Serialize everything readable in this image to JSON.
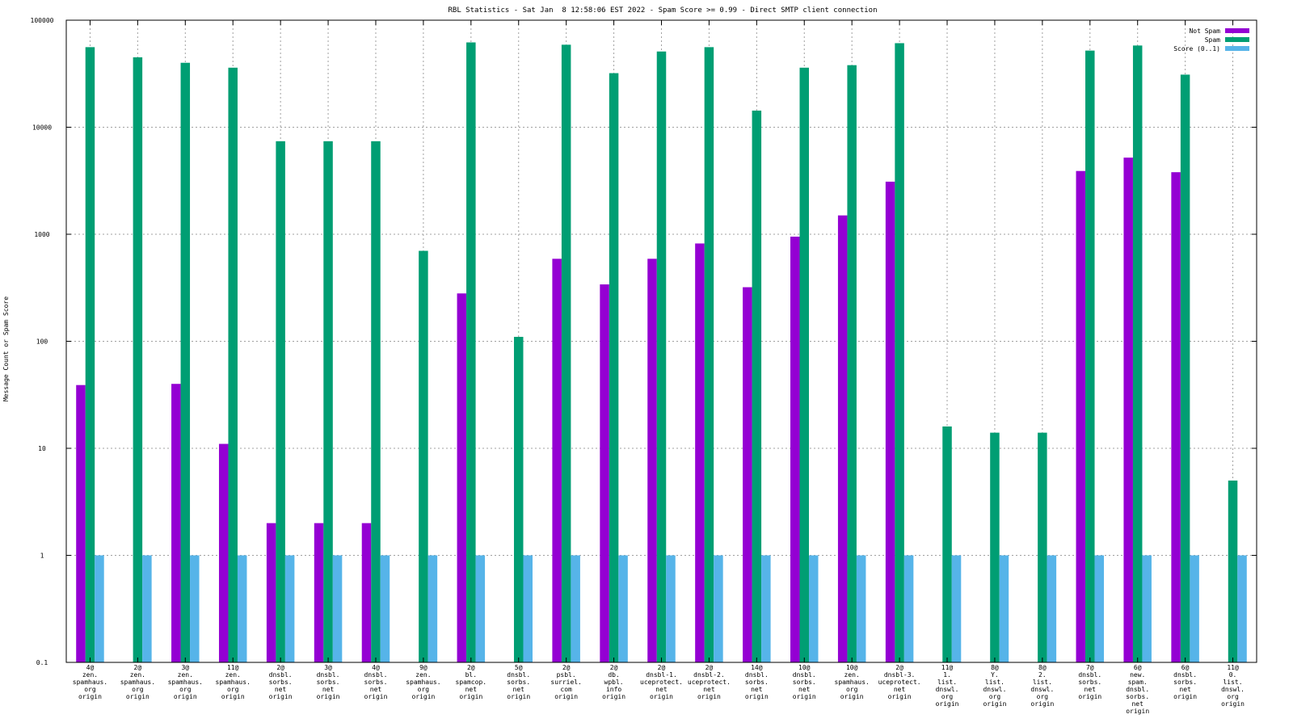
{
  "chart_data": {
    "type": "bar",
    "title": "RBL Statistics - Sat Jan  8 12:58:06 EST 2022 - Spam Score >= 0.99 - Direct SMTP client connection",
    "xlabel": "",
    "ylabel": "Message Count or Spam Score",
    "y_scale": "log",
    "ylim": [
      0.1,
      100000
    ],
    "y_ticks": [
      0.1,
      1,
      10,
      100,
      1000,
      10000,
      100000
    ],
    "y_tick_labels": [
      "0.1",
      "1",
      "10",
      "100",
      "1000",
      "10000",
      "100000"
    ],
    "grid": true,
    "legend_position": "top-right",
    "categories": [
      [
        "4@",
        "zen.",
        "spamhaus.",
        "org",
        "origin"
      ],
      [
        "2@",
        "zen.",
        "spamhaus.",
        "org",
        "origin"
      ],
      [
        "3@",
        "zen.",
        "spamhaus.",
        "org",
        "origin"
      ],
      [
        "11@",
        "zen.",
        "spamhaus.",
        "org",
        "origin"
      ],
      [
        "2@",
        "dnsbl.",
        "sorbs.",
        "net",
        "origin"
      ],
      [
        "3@",
        "dnsbl.",
        "sorbs.",
        "net",
        "origin"
      ],
      [
        "4@",
        "dnsbl.",
        "sorbs.",
        "net",
        "origin"
      ],
      [
        "9@",
        "zen.",
        "spamhaus.",
        "org",
        "origin"
      ],
      [
        "2@",
        "bl.",
        "spamcop.",
        "net",
        "origin"
      ],
      [
        "5@",
        "dnsbl.",
        "sorbs.",
        "net",
        "origin"
      ],
      [
        "2@",
        "psbl.",
        "surriel.",
        "com",
        "origin"
      ],
      [
        "2@",
        "db.",
        "wpbl.",
        "info",
        "origin"
      ],
      [
        "2@",
        "dnsbl-1.",
        "uceprotect.",
        "net",
        "origin"
      ],
      [
        "2@",
        "dnsbl-2.",
        "uceprotect.",
        "net",
        "origin"
      ],
      [
        "14@",
        "dnsbl.",
        "sorbs.",
        "net",
        "origin"
      ],
      [
        "10@",
        "dnsbl.",
        "sorbs.",
        "net",
        "origin"
      ],
      [
        "10@",
        "zen.",
        "spamhaus.",
        "org",
        "origin"
      ],
      [
        "2@",
        "dnsbl-3.",
        "uceprotect.",
        "net",
        "origin"
      ],
      [
        "11@",
        "1.",
        "list.",
        "dnswl.",
        "org",
        "origin"
      ],
      [
        "8@",
        "Y.",
        "list.",
        "dnswl.",
        "org",
        "origin"
      ],
      [
        "8@",
        "2.",
        "list.",
        "dnswl.",
        "org",
        "origin"
      ],
      [
        "7@",
        "dnsbl.",
        "sorbs.",
        "net",
        "origin"
      ],
      [
        "6@",
        "new.",
        "spam.",
        "dnsbl.",
        "sorbs.",
        "net",
        "origin"
      ],
      [
        "6@",
        "dnsbl.",
        "sorbs.",
        "net",
        "origin"
      ],
      [
        "11@",
        "0.",
        "list.",
        "dnswl.",
        "org",
        "origin"
      ]
    ],
    "series": [
      {
        "name": "Not Spam",
        "color": "#9400d3",
        "values": [
          39,
          null,
          40,
          11,
          2,
          2,
          2,
          null,
          280,
          null,
          590,
          340,
          590,
          820,
          320,
          950,
          1500,
          3100,
          null,
          null,
          null,
          3900,
          5200,
          3800,
          null
        ]
      },
      {
        "name": "Spam",
        "color": "#009e73",
        "values": [
          56000,
          45000,
          40000,
          36000,
          7400,
          7400,
          7400,
          700,
          62000,
          110,
          59000,
          32000,
          51000,
          56000,
          14300,
          36000,
          38000,
          61000,
          16,
          14,
          14,
          52000,
          58000,
          31000,
          5
        ]
      },
      {
        "name": "Score (0..1)",
        "color": "#56b4e9",
        "values": [
          1,
          1,
          1,
          1,
          1,
          1,
          1,
          1,
          1,
          1,
          1,
          1,
          1,
          1,
          1,
          1,
          1,
          1,
          1,
          1,
          1,
          1,
          1,
          1,
          1
        ]
      }
    ]
  }
}
